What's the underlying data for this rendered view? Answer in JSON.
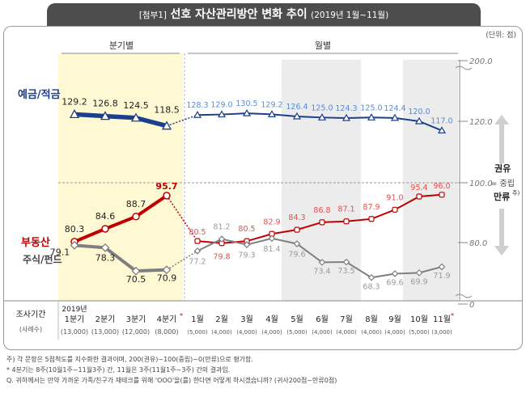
{
  "title_prefix": "[첨부1]",
  "title_main": "선호 자산관리방안 변화 추이",
  "title_period": "(2019년 1월~11월)",
  "unit_note": "(단위: 점)",
  "group_labels": {
    "quarterly": "분기별",
    "monthly": "월별"
  },
  "scale_labels": {
    "up": "권유",
    "mid": "= 중립",
    "down": "만류",
    "down_sup": "주)"
  },
  "survey_header": {
    "label": "조사기간",
    "sublabel": "(사례수)",
    "year": "2019년"
  },
  "notes": [
    "주) 각 문항은 5점척도를 지수화한 결과이며, 200(권유)~100(중립)~0(만류)으로 평가함.",
    "* 4분기는 8주(10월1주~11월3주) 간, 11월은 3주(11월1주~3주) 간의 결과임.",
    "Q. 귀하께서는 만약 가까운 가족/친구가 재테크를 위해 'OOO'을(를) 한다면 어떻게 하시겠습니까? (귀사200점~만류0점)"
  ],
  "colors": {
    "deposit": "#1b3f8b",
    "realestate": "#c00000",
    "stock": "#7f7f7f",
    "deposit_label": "#5b8bd0",
    "realestate_label": "#e05050",
    "stock_label": "#9a9a9a",
    "quarter_bg": "#fff9d3",
    "month_bg": "#ececec"
  },
  "chart_data": {
    "type": "line",
    "title": "선호 자산관리방안 변화 추이",
    "ylim": [
      0,
      200
    ],
    "y_ticks": [
      "0",
      "80.0",
      "100.0",
      "120.0",
      "200.0"
    ],
    "quarterly_categories": [
      {
        "label": "1분기",
        "n": "(13,000)"
      },
      {
        "label": "2분기",
        "n": "(13,000)"
      },
      {
        "label": "3분기",
        "n": "(12,000)"
      },
      {
        "label": "4분기",
        "sup": "*",
        "n": "(8,000)"
      }
    ],
    "monthly_categories": [
      {
        "label": "1월",
        "n": "(5,000)"
      },
      {
        "label": "2월",
        "n": "(4,000)"
      },
      {
        "label": "3월",
        "n": "(4,000)"
      },
      {
        "label": "4월",
        "n": "(4,000)"
      },
      {
        "label": "5월",
        "n": "(5,000)"
      },
      {
        "label": "6월",
        "n": "(4,000)"
      },
      {
        "label": "7월",
        "n": "(4,000)"
      },
      {
        "label": "8월",
        "n": "(4,000)"
      },
      {
        "label": "9월",
        "n": "(4,000)"
      },
      {
        "label": "10월",
        "n": "(5,000)"
      },
      {
        "label": "11월",
        "sup": "*",
        "n": "(3,000)"
      }
    ],
    "series": [
      {
        "name": "예금/적금",
        "key": "deposit",
        "quarterly": [
          129.2,
          126.8,
          124.5,
          118.5
        ],
        "quarterly_labels": [
          "129.2",
          "126.8",
          "124.5",
          "118.5"
        ],
        "monthly": [
          128.3,
          129.0,
          130.5,
          129.2,
          126.4,
          125.0,
          124.3,
          125.0,
          124.4,
          120.0,
          117.0
        ],
        "monthly_labels": [
          "128.3",
          "129.0",
          "130.5",
          "129.2",
          "126.4",
          "125.0",
          "124.3",
          "125.0",
          "124.4",
          "120.0",
          "117.0"
        ]
      },
      {
        "name": "부동산",
        "key": "realestate",
        "quarterly": [
          80.3,
          84.6,
          88.7,
          95.7
        ],
        "quarterly_labels": [
          "80.3",
          "84.6",
          "88.7",
          "95.7"
        ],
        "monthly": [
          80.5,
          79.8,
          80.5,
          82.9,
          84.3,
          86.8,
          87.1,
          87.9,
          91.0,
          95.4,
          96.0
        ],
        "monthly_labels": [
          "80.5",
          "79.8",
          "80.5",
          "82.9",
          "84.3",
          "86.8",
          "87.1",
          "87.9",
          "91.0",
          "95.4",
          "96.0"
        ]
      },
      {
        "name": "주식/펀드",
        "key": "stock",
        "quarterly": [
          79.1,
          78.3,
          70.5,
          70.9
        ],
        "quarterly_labels": [
          "79.1",
          "78.3",
          "70.5",
          "70.9"
        ],
        "monthly": [
          77.2,
          81.2,
          79.3,
          81.4,
          79.6,
          73.4,
          73.5,
          68.3,
          69.6,
          69.9,
          71.9
        ],
        "monthly_labels": [
          "77.2",
          "81.2",
          "79.3",
          "81.4",
          "79.6",
          "73.4",
          "73.5",
          "68.3",
          "69.6",
          "69.9",
          "71.9"
        ]
      }
    ]
  }
}
